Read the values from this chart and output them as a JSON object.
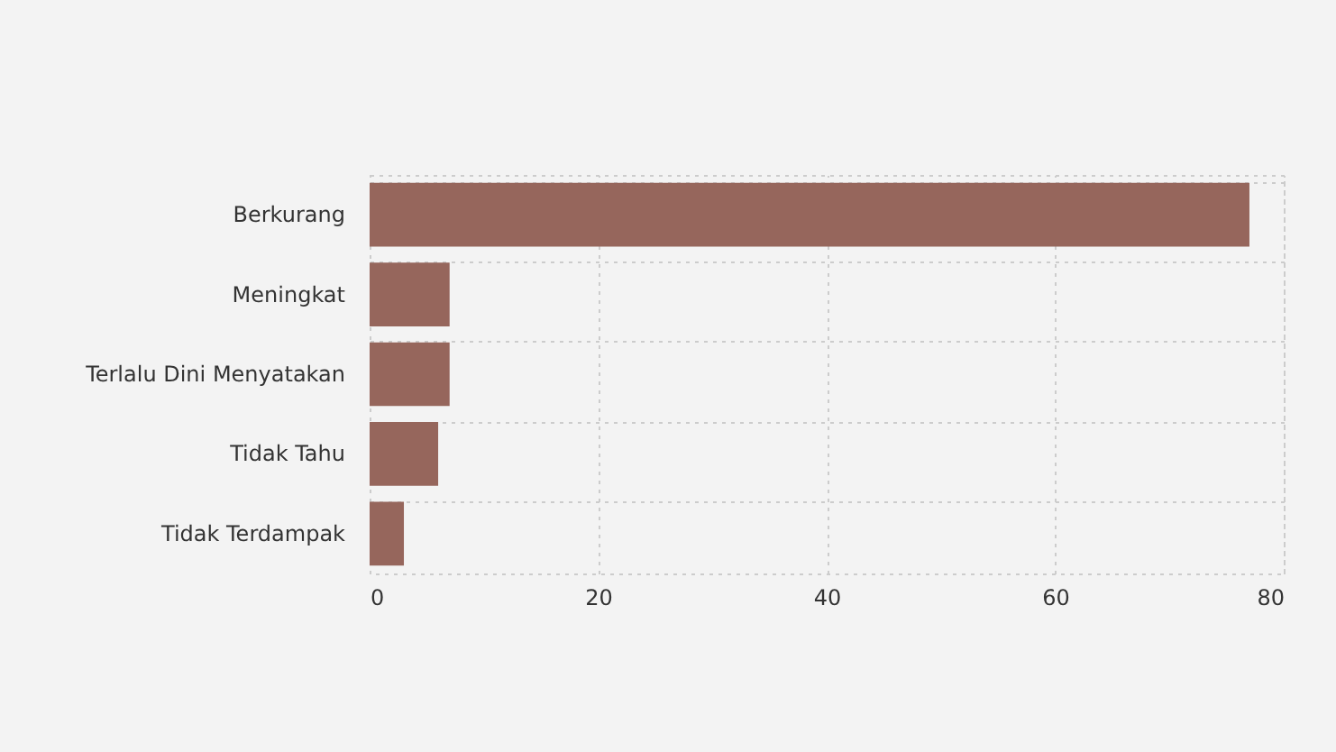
{
  "chart_data": {
    "type": "bar",
    "orientation": "horizontal",
    "categories": [
      "Berkurang",
      "Meningkat",
      "Terlalu Dini Menyatakan",
      "Tidak Tahu",
      "Tidak Terdampak"
    ],
    "values": [
      77,
      7,
      7,
      6,
      3
    ],
    "color": "#96665c",
    "xlim": [
      0,
      80
    ],
    "xticks": [
      0,
      20,
      40,
      60,
      80
    ],
    "grid": true
  }
}
